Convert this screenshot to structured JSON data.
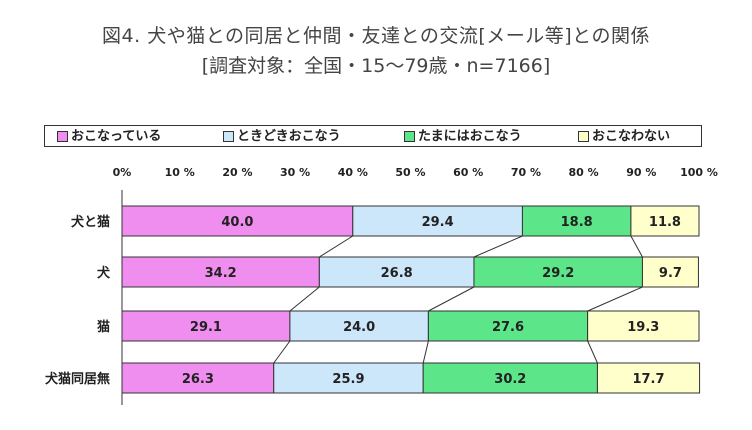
{
  "title": "図4. 犬や猫との同居と仲間・友達との交流[メール等]との関係",
  "subtitle": "[調査対象：全国・15～79歳・n=7166]",
  "chart_data": {
    "type": "bar",
    "orientation": "horizontal",
    "stacked": true,
    "percent": true,
    "xlim": [
      0,
      100
    ],
    "x_ticks": [
      "0%",
      "10 %",
      "20 %",
      "30 %",
      "40 %",
      "50 %",
      "60 %",
      "70 %",
      "80 %",
      "90 %",
      "100 %"
    ],
    "categories": [
      "犬と猫",
      "犬",
      "猫",
      "犬猫同居無"
    ],
    "series": [
      {
        "name": "おこなっている",
        "color": "#f08ef0",
        "values": [
          40.0,
          34.2,
          29.1,
          26.3
        ],
        "labels": [
          "40.0",
          "34.2",
          "29.1",
          "26.3"
        ]
      },
      {
        "name": "ときどきおこなう",
        "color": "#cce6fa",
        "values": [
          29.4,
          26.8,
          24.0,
          25.9
        ],
        "labels": [
          "29.4",
          "26.8",
          "24.0",
          "25.9"
        ]
      },
      {
        "name": "たまにはおこなう",
        "color": "#5de58a",
        "values": [
          18.8,
          29.2,
          27.6,
          30.2
        ],
        "labels": [
          "18.8",
          "29.2",
          "27.6",
          "30.2"
        ]
      },
      {
        "name": "おこなわない",
        "color": "#ffffcc",
        "values": [
          11.8,
          9.7,
          19.3,
          17.7
        ],
        "labels": [
          "11.8",
          "9.7",
          "19.3",
          "17.7"
        ]
      }
    ],
    "legend_position": "top",
    "connector_lines": true,
    "grid": false
  }
}
